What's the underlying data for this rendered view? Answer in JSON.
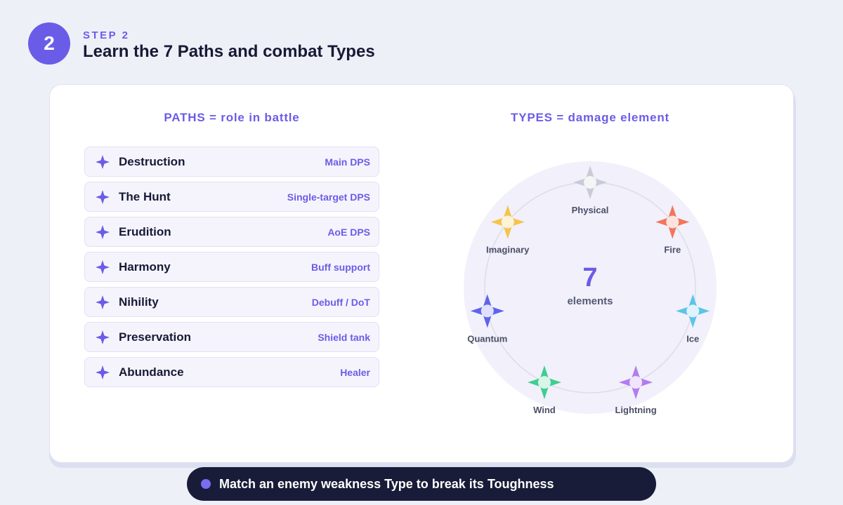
{
  "header": {
    "step_number": "2",
    "step_label": "STEP 2",
    "title": "Learn the 7 Paths and combat Types"
  },
  "paths": {
    "heading": "PATHS = role in battle",
    "items": [
      {
        "name": "Destruction",
        "role": "Main DPS"
      },
      {
        "name": "The Hunt",
        "role": "Single-target DPS"
      },
      {
        "name": "Erudition",
        "role": "AoE DPS"
      },
      {
        "name": "Harmony",
        "role": "Buff support"
      },
      {
        "name": "Nihility",
        "role": "Debuff / DoT"
      },
      {
        "name": "Preservation",
        "role": "Shield tank"
      },
      {
        "name": "Abundance",
        "role": "Healer"
      }
    ]
  },
  "types": {
    "heading": "TYPES = damage element",
    "center_number": "7",
    "center_label": "elements",
    "items": [
      {
        "name": "Physical",
        "color": "#c9ccd6"
      },
      {
        "name": "Fire",
        "color": "#f4745a"
      },
      {
        "name": "Ice",
        "color": "#5bc4ea"
      },
      {
        "name": "Lightning",
        "color": "#b27cf0"
      },
      {
        "name": "Wind",
        "color": "#3fce8f"
      },
      {
        "name": "Quantum",
        "color": "#5f63ea"
      },
      {
        "name": "Imaginary",
        "color": "#f6c44a"
      }
    ]
  },
  "footer": {
    "text": "Match an enemy weakness Type to break its Toughness"
  },
  "colors": {
    "accent": "#6b5ce7",
    "dark": "#161a35",
    "pill": "#181c38"
  }
}
